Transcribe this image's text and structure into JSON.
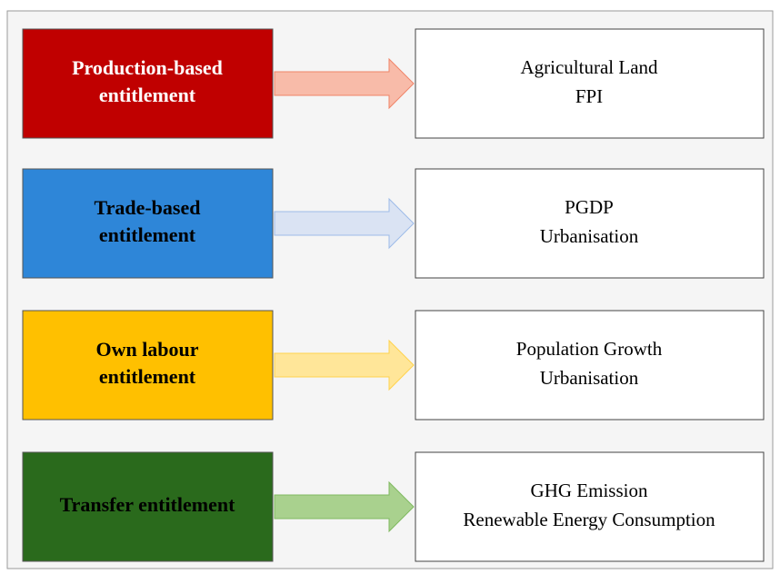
{
  "rows": [
    {
      "left": [
        "Production-based",
        "entitlement"
      ],
      "right": [
        "Agricultural Land",
        "FPI"
      ]
    },
    {
      "left": [
        "Trade-based",
        "entitlement"
      ],
      "right": [
        "PGDP",
        "Urbanisation"
      ]
    },
    {
      "left": [
        "Own labour",
        "entitlement"
      ],
      "right": [
        "Population Growth",
        "Urbanisation"
      ]
    },
    {
      "left": [
        "Transfer entitlement"
      ],
      "right": [
        "GHG Emission",
        "Renewable Energy Consumption"
      ]
    }
  ]
}
